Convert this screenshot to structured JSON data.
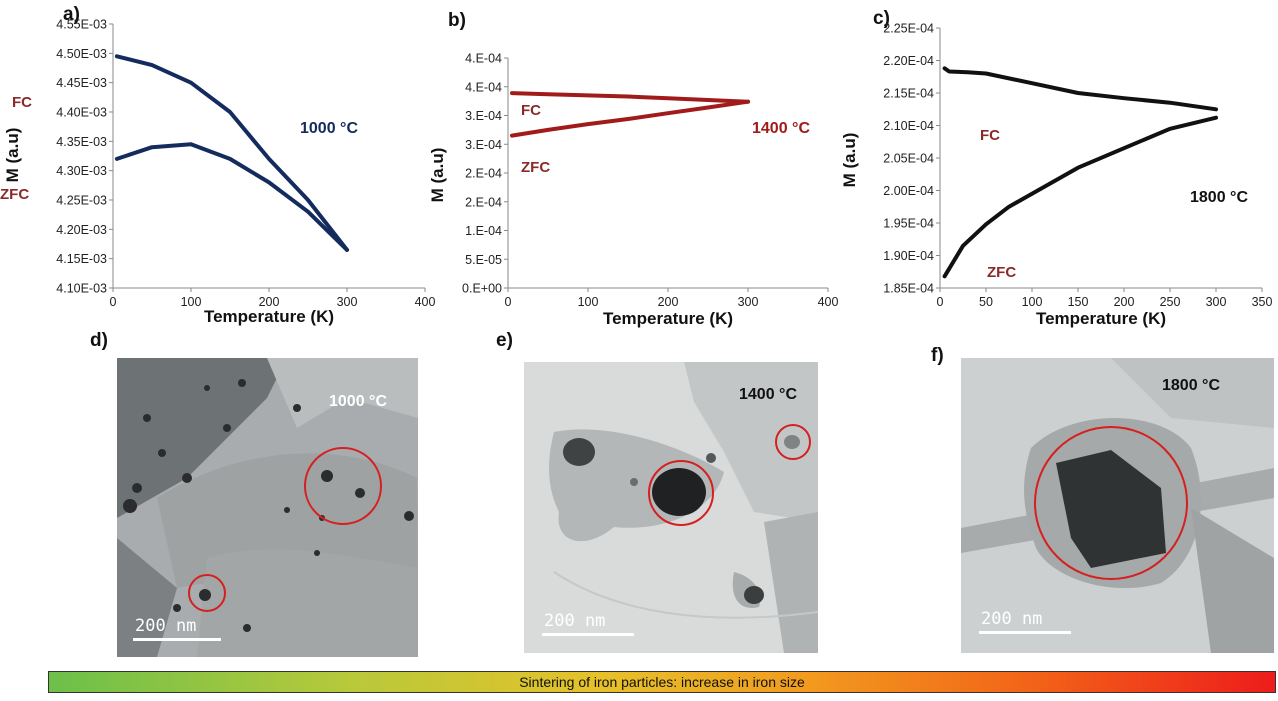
{
  "chart_data": [
    {
      "type": "line",
      "panel": "a)",
      "xlabel": "Temperature (K)",
      "ylabel": "M (a.u)",
      "xlim": [
        0,
        400
      ],
      "ylim": [
        0.0041,
        0.00455
      ],
      "xticks": [
        0,
        100,
        200,
        300,
        400
      ],
      "xtick_labels": [
        "0",
        "100",
        "200",
        "300",
        "400"
      ],
      "yticks": [
        0.0041,
        0.00415,
        0.0042,
        0.00425,
        0.0043,
        0.00435,
        0.0044,
        0.00445,
        0.0045,
        0.00455
      ],
      "ytick_labels": [
        "4.10E-03",
        "4.15E-03",
        "4.20E-03",
        "4.25E-03",
        "4.30E-03",
        "4.35E-03",
        "4.40E-03",
        "4.45E-03",
        "4.50E-03",
        "4.55E-03"
      ],
      "annotation": "1000 °C",
      "color": "#142b5e",
      "series": [
        {
          "name": "FC",
          "x": [
            5,
            50,
            100,
            150,
            200,
            250,
            300
          ],
          "y": [
            0.004495,
            0.00448,
            0.00445,
            0.0044,
            0.00432,
            0.00425,
            0.004165
          ]
        },
        {
          "name": "ZFC",
          "x": [
            5,
            50,
            100,
            150,
            200,
            250,
            300
          ],
          "y": [
            0.00432,
            0.00434,
            0.004345,
            0.00432,
            0.00428,
            0.00423,
            0.004165
          ]
        }
      ]
    },
    {
      "type": "line",
      "panel": "b)",
      "xlabel": "Temperature (K)",
      "ylabel": "M (a.u)",
      "xlim": [
        0,
        400
      ],
      "ylim": [
        0,
        0.0004
      ],
      "xticks": [
        0,
        100,
        200,
        300,
        400
      ],
      "xtick_labels": [
        "0",
        "100",
        "200",
        "300",
        "400"
      ],
      "yticks": [
        0,
        5e-05,
        0.0001,
        0.00015,
        0.0002,
        0.00025,
        0.0003,
        0.00035,
        0.0004
      ],
      "ytick_labels": [
        "0.E+00",
        "5.E-05",
        "1.E-04",
        "2.E-04",
        "2.E-04",
        "3.E-04",
        "3.E-04",
        "4.E-04",
        "4.E-04"
      ],
      "annotation": "1400 °C",
      "color": "#a11b1b",
      "series": [
        {
          "name": "FC",
          "x": [
            5,
            50,
            100,
            150,
            200,
            250,
            300
          ],
          "y": [
            0.000339,
            0.000337,
            0.000335,
            0.000333,
            0.00033,
            0.000327,
            0.000324
          ]
        },
        {
          "name": "ZFC",
          "x": [
            5,
            50,
            100,
            150,
            200,
            250,
            300
          ],
          "y": [
            0.000265,
            0.000275,
            0.000285,
            0.000294,
            0.000304,
            0.000314,
            0.000324
          ]
        }
      ]
    },
    {
      "type": "line",
      "panel": "c)",
      "xlabel": "Temperature (K)",
      "ylabel": "M (a.u)",
      "xlim": [
        0,
        350
      ],
      "ylim": [
        0.000185,
        0.000225
      ],
      "xticks": [
        0,
        50,
        100,
        150,
        200,
        250,
        300,
        350
      ],
      "xtick_labels": [
        "0",
        "50",
        "100",
        "150",
        "200",
        "250",
        "300",
        "350"
      ],
      "yticks": [
        0.000185,
        0.00019,
        0.000195,
        0.0002,
        0.000205,
        0.00021,
        0.000215,
        0.00022,
        0.000225
      ],
      "ytick_labels": [
        "1.85E-04",
        "1.90E-04",
        "1.95E-04",
        "2.00E-04",
        "2.05E-04",
        "2.10E-04",
        "2.15E-04",
        "2.20E-04",
        "2.25E-04"
      ],
      "annotation": "1800 °C",
      "color": "#111111",
      "series": [
        {
          "name": "FC",
          "x": [
            5,
            10,
            30,
            50,
            100,
            150,
            200,
            250,
            300
          ],
          "y": [
            0.0002188,
            0.0002183,
            0.0002182,
            0.000218,
            0.0002165,
            0.000215,
            0.0002142,
            0.0002135,
            0.0002125
          ]
        },
        {
          "name": "ZFC",
          "x": [
            5,
            25,
            50,
            75,
            100,
            150,
            200,
            250,
            300
          ],
          "y": [
            0.0001868,
            0.0001915,
            0.0001948,
            0.0001975,
            0.0001995,
            0.0002035,
            0.0002065,
            0.0002095,
            0.0002112
          ]
        }
      ]
    }
  ],
  "curve_label_color": "#8a2a2a",
  "tem_images": [
    {
      "panel": "d)",
      "label": "1000 °C",
      "scale": "200 nm",
      "circle_color": "#d42020"
    },
    {
      "panel": "e)",
      "label": "1400 °C",
      "scale": "200 nm",
      "circle_color": "#d42020"
    },
    {
      "panel": "f)",
      "label": "1800 °C",
      "scale": "200 nm",
      "circle_color": "#d42020"
    }
  ],
  "gradient_bar": {
    "text": "Sintering of iron particles: increase in iron size",
    "start_color": "#6cc04a",
    "end_color": "#ee1c1c"
  }
}
